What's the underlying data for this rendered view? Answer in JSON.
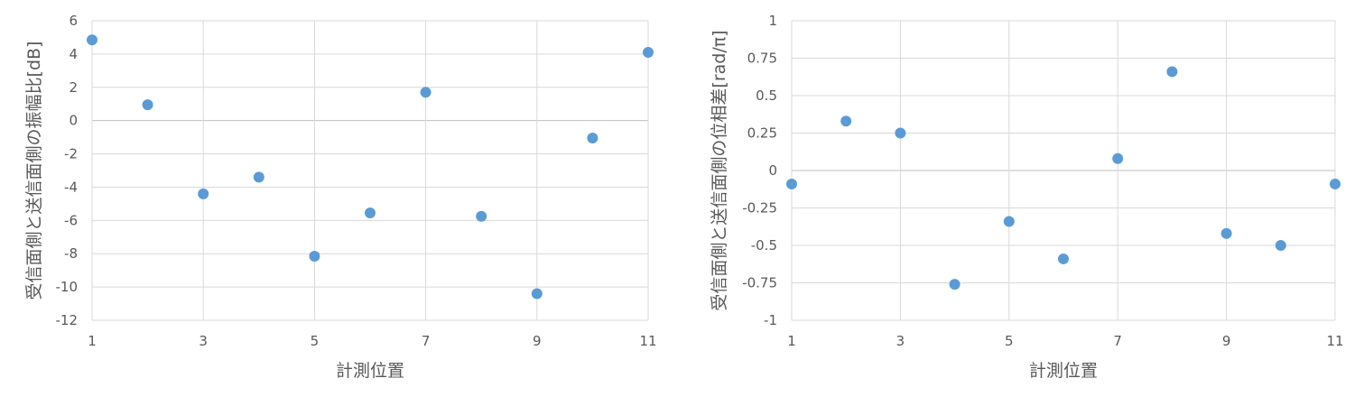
{
  "chart_data": [
    {
      "type": "scatter",
      "xlabel": "計測位置",
      "ylabel": "受信面側と送信面側の振幅比[dB]",
      "xlim": [
        1,
        11
      ],
      "ylim": [
        -12,
        6
      ],
      "x_ticks": [
        1,
        3,
        5,
        7,
        9,
        11
      ],
      "y_ticks": [
        6,
        4,
        2,
        0,
        -2,
        -4,
        -6,
        -8,
        -10,
        -12
      ],
      "grid": true,
      "marker_color": "#5b9bd5",
      "series": [
        {
          "x": [
            1,
            2,
            3,
            4,
            5,
            6,
            7,
            8,
            9,
            10,
            11
          ],
          "y": [
            4.85,
            0.95,
            -4.4,
            -3.4,
            -8.15,
            -5.55,
            1.7,
            -5.75,
            -10.4,
            -1.05,
            4.1
          ]
        }
      ]
    },
    {
      "type": "scatter",
      "xlabel": "計測位置",
      "ylabel": "受信面側と送信面側の位相差[rad/π]",
      "xlim": [
        1,
        11
      ],
      "ylim": [
        -1,
        1
      ],
      "x_ticks": [
        1,
        3,
        5,
        7,
        9,
        11
      ],
      "y_ticks": [
        1,
        0.75,
        0.5,
        0.25,
        0,
        -0.25,
        -0.5,
        -0.75,
        -1
      ],
      "grid": true,
      "marker_color": "#5b9bd5",
      "series": [
        {
          "x": [
            1,
            2,
            3,
            4,
            5,
            6,
            7,
            8,
            9,
            10,
            11
          ],
          "y": [
            -0.09,
            0.33,
            0.25,
            -0.76,
            -0.34,
            -0.59,
            0.08,
            0.66,
            -0.42,
            -0.5,
            -0.09
          ]
        }
      ]
    }
  ]
}
